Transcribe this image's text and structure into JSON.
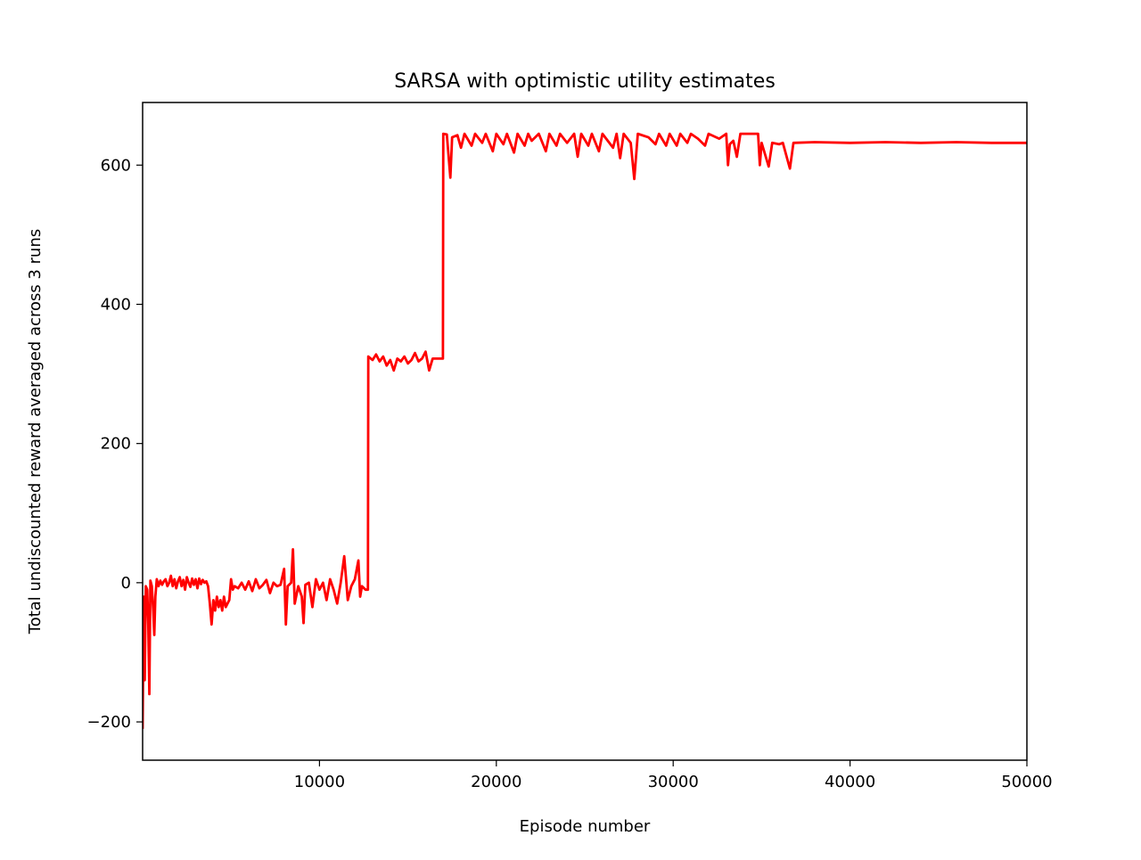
{
  "chart_data": {
    "type": "line",
    "title": "SARSA with optimistic utility estimates",
    "xlabel": "Episode number",
    "ylabel": "Total undiscounted reward averaged across 3 runs",
    "xlim": [
      0,
      50000
    ],
    "ylim": [
      -255,
      690
    ],
    "x_ticks": [
      10000,
      20000,
      30000,
      40000,
      50000
    ],
    "x_tick_labels": [
      "10000",
      "20000",
      "30000",
      "40000",
      "50000"
    ],
    "y_ticks": [
      -200,
      0,
      200,
      400,
      600
    ],
    "y_tick_labels": [
      "−200",
      "0",
      "200",
      "400",
      "600"
    ],
    "grid": false,
    "series": [
      {
        "name": "SARSA",
        "color": "#ff0000",
        "points": [
          [
            0,
            -210
          ],
          [
            60,
            -20
          ],
          [
            120,
            -140
          ],
          [
            180,
            -5
          ],
          [
            260,
            -10
          ],
          [
            320,
            -60
          ],
          [
            380,
            -160
          ],
          [
            440,
            3
          ],
          [
            520,
            -5
          ],
          [
            600,
            -40
          ],
          [
            660,
            -75
          ],
          [
            720,
            -20
          ],
          [
            800,
            5
          ],
          [
            900,
            -5
          ],
          [
            1000,
            3
          ],
          [
            1100,
            -3
          ],
          [
            1200,
            2
          ],
          [
            1300,
            5
          ],
          [
            1400,
            -5
          ],
          [
            1500,
            0
          ],
          [
            1600,
            10
          ],
          [
            1700,
            -5
          ],
          [
            1800,
            5
          ],
          [
            1900,
            -8
          ],
          [
            2000,
            2
          ],
          [
            2100,
            8
          ],
          [
            2200,
            -5
          ],
          [
            2300,
            4
          ],
          [
            2400,
            -10
          ],
          [
            2500,
            8
          ],
          [
            2600,
            0
          ],
          [
            2700,
            -6
          ],
          [
            2800,
            6
          ],
          [
            2900,
            -3
          ],
          [
            3000,
            5
          ],
          [
            3100,
            -8
          ],
          [
            3200,
            6
          ],
          [
            3300,
            -2
          ],
          [
            3400,
            4
          ],
          [
            3500,
            0
          ],
          [
            3600,
            2
          ],
          [
            3700,
            -5
          ],
          [
            3800,
            -30
          ],
          [
            3900,
            -60
          ],
          [
            4000,
            -25
          ],
          [
            4100,
            -40
          ],
          [
            4200,
            -20
          ],
          [
            4300,
            -35
          ],
          [
            4400,
            -25
          ],
          [
            4500,
            -40
          ],
          [
            4600,
            -20
          ],
          [
            4700,
            -35
          ],
          [
            4800,
            -30
          ],
          [
            4900,
            -25
          ],
          [
            5000,
            5
          ],
          [
            5100,
            -10
          ],
          [
            5200,
            -5
          ],
          [
            5400,
            -8
          ],
          [
            5600,
            0
          ],
          [
            5800,
            -10
          ],
          [
            6000,
            2
          ],
          [
            6200,
            -12
          ],
          [
            6400,
            5
          ],
          [
            6600,
            -8
          ],
          [
            6800,
            -3
          ],
          [
            7000,
            4
          ],
          [
            7200,
            -15
          ],
          [
            7400,
            0
          ],
          [
            7600,
            -5
          ],
          [
            7800,
            -3
          ],
          [
            8000,
            20
          ],
          [
            8100,
            -60
          ],
          [
            8200,
            -5
          ],
          [
            8400,
            0
          ],
          [
            8500,
            48
          ],
          [
            8600,
            -30
          ],
          [
            8800,
            -5
          ],
          [
            9000,
            -20
          ],
          [
            9100,
            -58
          ],
          [
            9200,
            -3
          ],
          [
            9400,
            0
          ],
          [
            9600,
            -35
          ],
          [
            9800,
            5
          ],
          [
            10000,
            -10
          ],
          [
            10200,
            0
          ],
          [
            10400,
            -25
          ],
          [
            10600,
            5
          ],
          [
            10800,
            -10
          ],
          [
            11000,
            -30
          ],
          [
            11200,
            0
          ],
          [
            11400,
            38
          ],
          [
            11600,
            -25
          ],
          [
            11800,
            -5
          ],
          [
            12000,
            5
          ],
          [
            12200,
            32
          ],
          [
            12300,
            -20
          ],
          [
            12400,
            -5
          ],
          [
            12600,
            -10
          ],
          [
            12740,
            -10
          ],
          [
            12760,
            325
          ],
          [
            13000,
            320
          ],
          [
            13200,
            328
          ],
          [
            13400,
            318
          ],
          [
            13600,
            325
          ],
          [
            13800,
            312
          ],
          [
            14000,
            320
          ],
          [
            14200,
            305
          ],
          [
            14400,
            322
          ],
          [
            14600,
            318
          ],
          [
            14800,
            325
          ],
          [
            15000,
            315
          ],
          [
            15200,
            320
          ],
          [
            15400,
            330
          ],
          [
            15600,
            318
          ],
          [
            15800,
            322
          ],
          [
            16000,
            332
          ],
          [
            16200,
            305
          ],
          [
            16400,
            322
          ],
          [
            16600,
            322
          ],
          [
            16980,
            322
          ],
          [
            17000,
            645
          ],
          [
            17200,
            644
          ],
          [
            17400,
            582
          ],
          [
            17500,
            640
          ],
          [
            17800,
            643
          ],
          [
            18000,
            625
          ],
          [
            18200,
            645
          ],
          [
            18600,
            628
          ],
          [
            18800,
            645
          ],
          [
            19200,
            632
          ],
          [
            19400,
            645
          ],
          [
            19800,
            620
          ],
          [
            20000,
            645
          ],
          [
            20400,
            630
          ],
          [
            20600,
            645
          ],
          [
            21000,
            618
          ],
          [
            21200,
            645
          ],
          [
            21600,
            628
          ],
          [
            21800,
            645
          ],
          [
            22000,
            635
          ],
          [
            22400,
            645
          ],
          [
            22800,
            620
          ],
          [
            23000,
            645
          ],
          [
            23400,
            628
          ],
          [
            23600,
            645
          ],
          [
            24000,
            632
          ],
          [
            24400,
            645
          ],
          [
            24600,
            612
          ],
          [
            24800,
            645
          ],
          [
            25200,
            628
          ],
          [
            25400,
            645
          ],
          [
            25800,
            620
          ],
          [
            26000,
            645
          ],
          [
            26600,
            625
          ],
          [
            26800,
            645
          ],
          [
            27000,
            610
          ],
          [
            27200,
            645
          ],
          [
            27600,
            632
          ],
          [
            27800,
            580
          ],
          [
            28000,
            645
          ],
          [
            28600,
            640
          ],
          [
            29000,
            630
          ],
          [
            29200,
            645
          ],
          [
            29600,
            628
          ],
          [
            29800,
            645
          ],
          [
            30200,
            628
          ],
          [
            30400,
            645
          ],
          [
            30800,
            632
          ],
          [
            31000,
            645
          ],
          [
            31400,
            638
          ],
          [
            31800,
            628
          ],
          [
            32000,
            645
          ],
          [
            32600,
            638
          ],
          [
            33000,
            645
          ],
          [
            33100,
            600
          ],
          [
            33200,
            630
          ],
          [
            33400,
            635
          ],
          [
            33600,
            612
          ],
          [
            33800,
            645
          ],
          [
            34200,
            645
          ],
          [
            34800,
            645
          ],
          [
            34900,
            600
          ],
          [
            35000,
            632
          ],
          [
            35400,
            598
          ],
          [
            35600,
            632
          ],
          [
            36000,
            630
          ],
          [
            36200,
            632
          ],
          [
            36600,
            595
          ],
          [
            36800,
            632
          ],
          [
            38000,
            633
          ],
          [
            40000,
            632
          ],
          [
            42000,
            633
          ],
          [
            44000,
            632
          ],
          [
            46000,
            633
          ],
          [
            48000,
            632
          ],
          [
            50000,
            632
          ]
        ]
      }
    ]
  }
}
